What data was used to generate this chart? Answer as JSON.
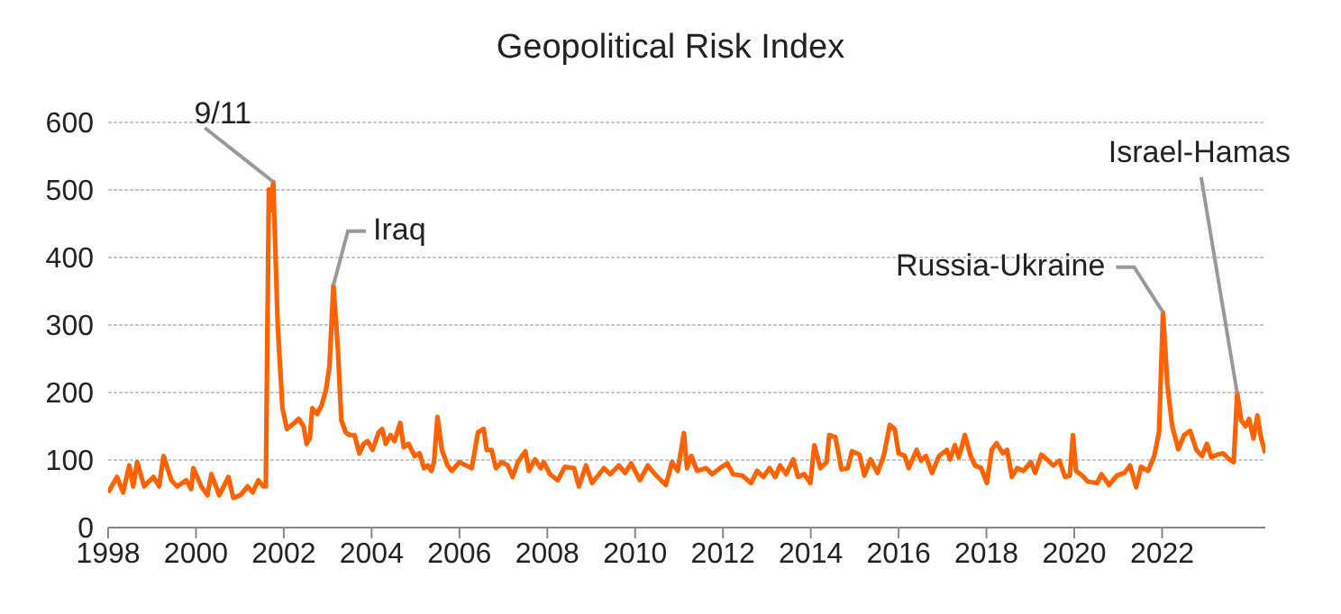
{
  "chart_data": {
    "type": "line",
    "title": "Geopolitical Risk Index",
    "x": [
      1998.0,
      1998.2,
      1998.34,
      1998.48,
      1998.57,
      1998.66,
      1998.82,
      1999.03,
      1999.16,
      1999.26,
      1999.44,
      1999.57,
      1999.78,
      1999.89,
      1999.94,
      2000.12,
      2000.26,
      2000.35,
      2000.53,
      2000.74,
      2000.85,
      2001.01,
      2001.18,
      2001.29,
      2001.42,
      2001.53,
      2001.59,
      2001.66,
      2001.7,
      2001.76,
      2001.86,
      2001.97,
      2002.07,
      2002.24,
      2002.34,
      2002.45,
      2002.52,
      2002.59,
      2002.65,
      2002.76,
      2002.86,
      2002.96,
      2003.04,
      2003.13,
      2003.23,
      2003.31,
      2003.41,
      2003.5,
      2003.61,
      2003.72,
      2003.82,
      2003.91,
      2004.02,
      2004.16,
      2004.24,
      2004.32,
      2004.43,
      2004.52,
      2004.65,
      2004.73,
      2004.84,
      2004.98,
      2005.09,
      2005.19,
      2005.28,
      2005.36,
      2005.42,
      2005.5,
      2005.6,
      2005.73,
      2005.83,
      2006.0,
      2006.28,
      2006.42,
      2006.55,
      2006.62,
      2006.73,
      2006.83,
      2006.96,
      2007.1,
      2007.21,
      2007.33,
      2007.5,
      2007.58,
      2007.72,
      2007.85,
      2007.92,
      2008.06,
      2008.24,
      2008.4,
      2008.61,
      2008.72,
      2008.88,
      2009.02,
      2009.29,
      2009.43,
      2009.63,
      2009.77,
      2009.91,
      2010.11,
      2010.29,
      2010.45,
      2010.7,
      2010.84,
      2010.97,
      2011.11,
      2011.18,
      2011.28,
      2011.41,
      2011.62,
      2011.75,
      2011.93,
      2012.1,
      2012.23,
      2012.44,
      2012.64,
      2012.78,
      2012.92,
      2013.06,
      2013.19,
      2013.3,
      2013.44,
      2013.6,
      2013.71,
      2013.85,
      2013.99,
      2014.08,
      2014.22,
      2014.36,
      2014.42,
      2014.56,
      2014.7,
      2014.84,
      2014.94,
      2015.11,
      2015.22,
      2015.36,
      2015.52,
      2015.66,
      2015.8,
      2015.91,
      2016.0,
      2016.14,
      2016.23,
      2016.41,
      2016.51,
      2016.62,
      2016.76,
      2016.92,
      2017.1,
      2017.17,
      2017.28,
      2017.37,
      2017.51,
      2017.64,
      2017.74,
      2017.88,
      2018.01,
      2018.12,
      2018.23,
      2018.37,
      2018.47,
      2018.58,
      2018.7,
      2018.84,
      2019.01,
      2019.11,
      2019.25,
      2019.38,
      2019.52,
      2019.66,
      2019.79,
      2019.9,
      2019.97,
      2020.04,
      2020.18,
      2020.31,
      2020.52,
      2020.62,
      2020.79,
      2020.97,
      2021.14,
      2021.27,
      2021.41,
      2021.52,
      2021.68,
      2021.82,
      2021.93,
      2022.02,
      2022.12,
      2022.23,
      2022.37,
      2022.5,
      2022.64,
      2022.78,
      2022.91,
      2023.02,
      2023.12,
      2023.25,
      2023.39,
      2023.53,
      2023.63,
      2023.71,
      2023.8,
      2023.9,
      2023.98,
      2024.08,
      2024.17,
      2024.25,
      2024.35
    ],
    "series": [
      {
        "color": "#ff6200",
        "values": [
          52,
          75,
          52,
          92,
          61,
          97,
          61,
          75,
          61,
          106,
          70,
          61,
          70,
          57,
          88,
          61,
          48,
          79,
          48,
          75,
          44,
          48,
          61,
          52,
          70,
          61,
          61,
          501,
          470,
          512,
          301,
          177,
          146,
          155,
          161,
          150,
          124,
          132,
          177,
          168,
          181,
          204,
          239,
          359,
          266,
          159,
          141,
          137,
          137,
          110,
          124,
          128,
          115,
          141,
          146,
          124,
          137,
          128,
          155,
          119,
          124,
          106,
          110,
          88,
          92,
          84,
          97,
          164,
          115,
          92,
          84,
          97,
          88,
          141,
          146,
          115,
          115,
          88,
          97,
          92,
          75,
          97,
          113,
          84,
          101,
          88,
          97,
          79,
          70,
          90,
          88,
          61,
          92,
          66,
          88,
          79,
          92,
          81,
          95,
          70,
          92,
          79,
          63,
          97,
          84,
          140,
          88,
          106,
          84,
          88,
          79,
          88,
          95,
          79,
          77,
          66,
          84,
          75,
          88,
          75,
          92,
          79,
          101,
          75,
          79,
          66,
          122,
          88,
          97,
          137,
          134,
          86,
          88,
          113,
          108,
          77,
          101,
          81,
          106,
          152,
          146,
          110,
          106,
          88,
          115,
          99,
          106,
          81,
          106,
          115,
          101,
          122,
          104,
          137,
          106,
          92,
          88,
          66,
          115,
          125,
          110,
          115,
          75,
          88,
          84,
          97,
          81,
          108,
          101,
          92,
          99,
          75,
          77,
          137,
          84,
          77,
          68,
          66,
          79,
          63,
          77,
          81,
          92,
          60,
          90,
          84,
          106,
          141,
          319,
          212,
          150,
          116,
          137,
          143,
          115,
          106,
          124,
          104,
          108,
          110,
          101,
          97,
          199,
          159,
          150,
          161,
          132,
          166,
          134,
          110
        ]
      }
    ],
    "xlim": [
      1998,
      2024.35
    ],
    "xticks": [
      1998,
      2000,
      2002,
      2004,
      2006,
      2008,
      2010,
      2012,
      2014,
      2016,
      2018,
      2020,
      2022
    ],
    "ylim": [
      0,
      600
    ],
    "yticks": [
      0,
      100,
      200,
      300,
      400,
      500,
      600
    ],
    "grid": "y",
    "marker": "none",
    "line_style": "solid",
    "annotations": [
      {
        "text": "9/11",
        "x": 2001.76,
        "y": 512
      },
      {
        "text": "Iraq",
        "x": 2003.13,
        "y": 359
      },
      {
        "text": "Russia-Ukraine",
        "x": 2022.02,
        "y": 319
      },
      {
        "text": "Israel-Hamas",
        "x": 2023.71,
        "y": 199
      }
    ]
  }
}
